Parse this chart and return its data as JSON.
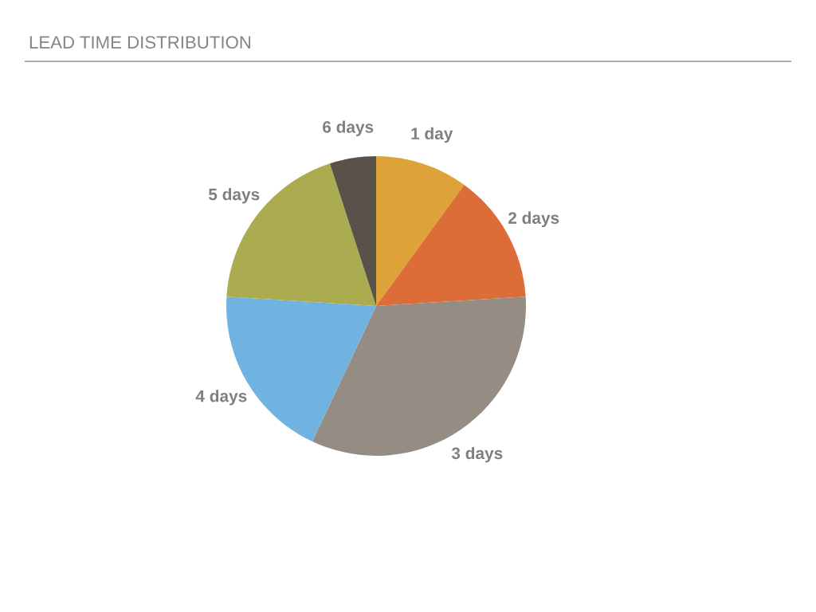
{
  "chart_data": {
    "type": "pie",
    "title": "LEAD TIME DISTRIBUTION",
    "categories": [
      "1 day",
      "2 days",
      "3 days",
      "4 days",
      "5 days",
      "6 days"
    ],
    "values": [
      10,
      14,
      33,
      19,
      19,
      5
    ],
    "colors": [
      "#dea338",
      "#dd6d38",
      "#958c83",
      "#71b3e0",
      "#abac4f",
      "#59524b"
    ],
    "legend": false
  }
}
